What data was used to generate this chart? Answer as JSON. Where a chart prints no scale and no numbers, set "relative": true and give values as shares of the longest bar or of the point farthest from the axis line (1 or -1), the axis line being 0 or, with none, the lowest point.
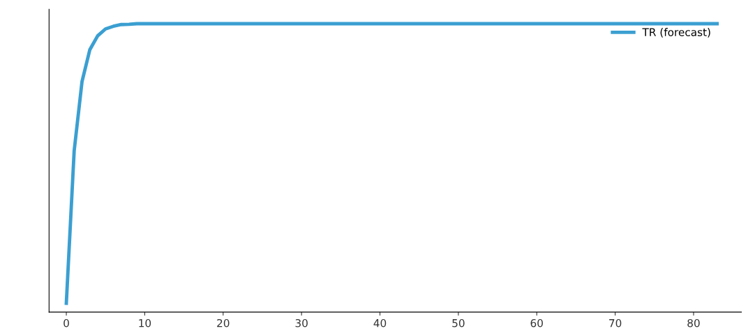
{
  "chart_data": {
    "type": "line",
    "relative": true,
    "tick_labels": "x",
    "legend": "top right",
    "xlim": [
      -2.2,
      86.1
    ],
    "xticks": [
      0,
      10,
      20,
      30,
      40,
      50,
      60,
      70,
      80
    ],
    "series": [
      {
        "name": "TR (forecast)",
        "color": "#3b9fd1",
        "x": [
          0,
          1,
          2,
          3,
          4,
          5,
          6,
          7,
          8,
          9,
          10,
          20,
          30,
          40,
          50,
          60,
          70,
          83
        ],
        "values": [
          0.031,
          0.559,
          0.799,
          0.91,
          0.958,
          0.982,
          0.991,
          0.997,
          0.998,
          1,
          1,
          1,
          1,
          1,
          1,
          1,
          1,
          1
        ]
      }
    ]
  }
}
